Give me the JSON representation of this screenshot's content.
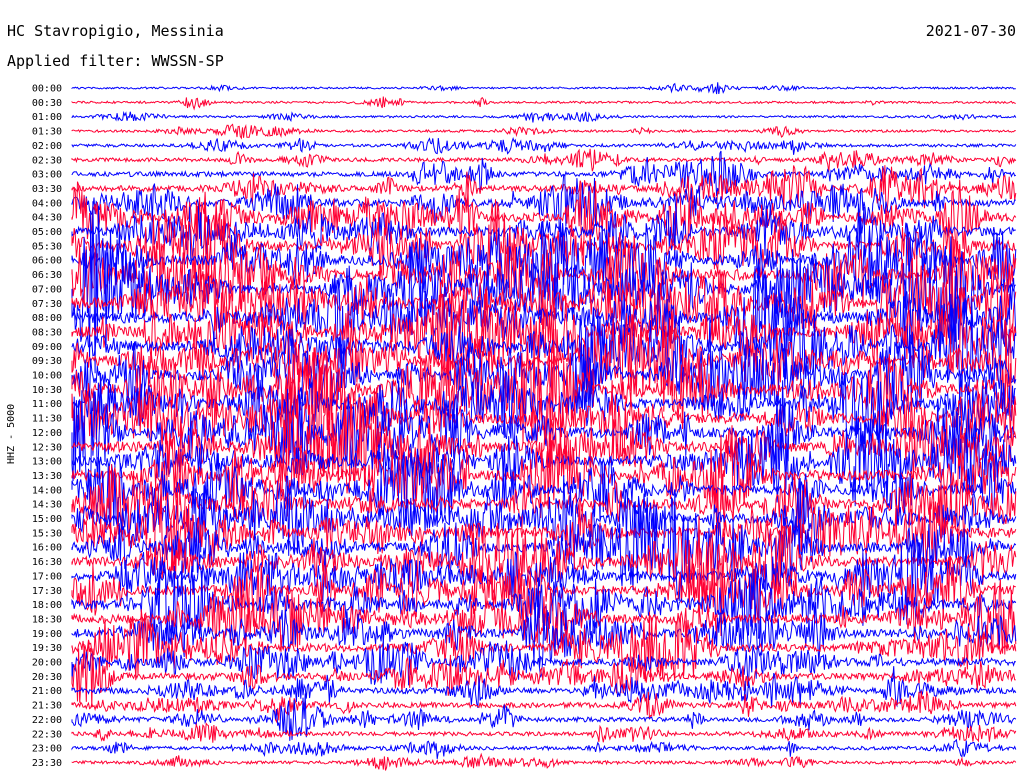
{
  "header": {
    "station": "HC Stavropigio, Messinia",
    "filter": "Applied filter: WWSSN-SP",
    "date": "2021-07-30"
  },
  "chart_data": {
    "type": "line",
    "ylabel": "HHZ - 5000",
    "row_labels": [
      "00:00",
      "00:30",
      "01:00",
      "01:30",
      "02:00",
      "02:30",
      "03:00",
      "03:30",
      "04:00",
      "04:30",
      "05:00",
      "05:30",
      "06:00",
      "06:30",
      "07:00",
      "07:30",
      "08:00",
      "08:30",
      "09:00",
      "09:30",
      "10:00",
      "10:30",
      "11:00",
      "11:30",
      "12:00",
      "12:30",
      "13:00",
      "13:30",
      "14:00",
      "14:30",
      "15:00",
      "15:30",
      "16:00",
      "16:30",
      "17:00",
      "17:30",
      "18:00",
      "18:30",
      "19:00",
      "19:30",
      "20:00",
      "20:30",
      "21:00",
      "21:30",
      "22:00",
      "22:30",
      "23:00",
      "23:30"
    ],
    "row_activity": [
      0.1,
      0.12,
      0.12,
      0.14,
      0.2,
      0.28,
      0.38,
      0.5,
      0.62,
      0.72,
      0.8,
      0.86,
      0.9,
      0.92,
      0.94,
      0.95,
      0.95,
      0.94,
      0.93,
      0.92,
      0.92,
      0.91,
      0.91,
      0.9,
      0.9,
      0.89,
      0.88,
      0.88,
      0.87,
      0.86,
      0.86,
      0.85,
      0.84,
      0.83,
      0.82,
      0.8,
      0.78,
      0.75,
      0.72,
      0.68,
      0.62,
      0.55,
      0.48,
      0.42,
      0.36,
      0.3,
      0.26,
      0.22
    ],
    "colors": [
      "#0000ff",
      "#ff0033"
    ],
    "grid": false
  }
}
